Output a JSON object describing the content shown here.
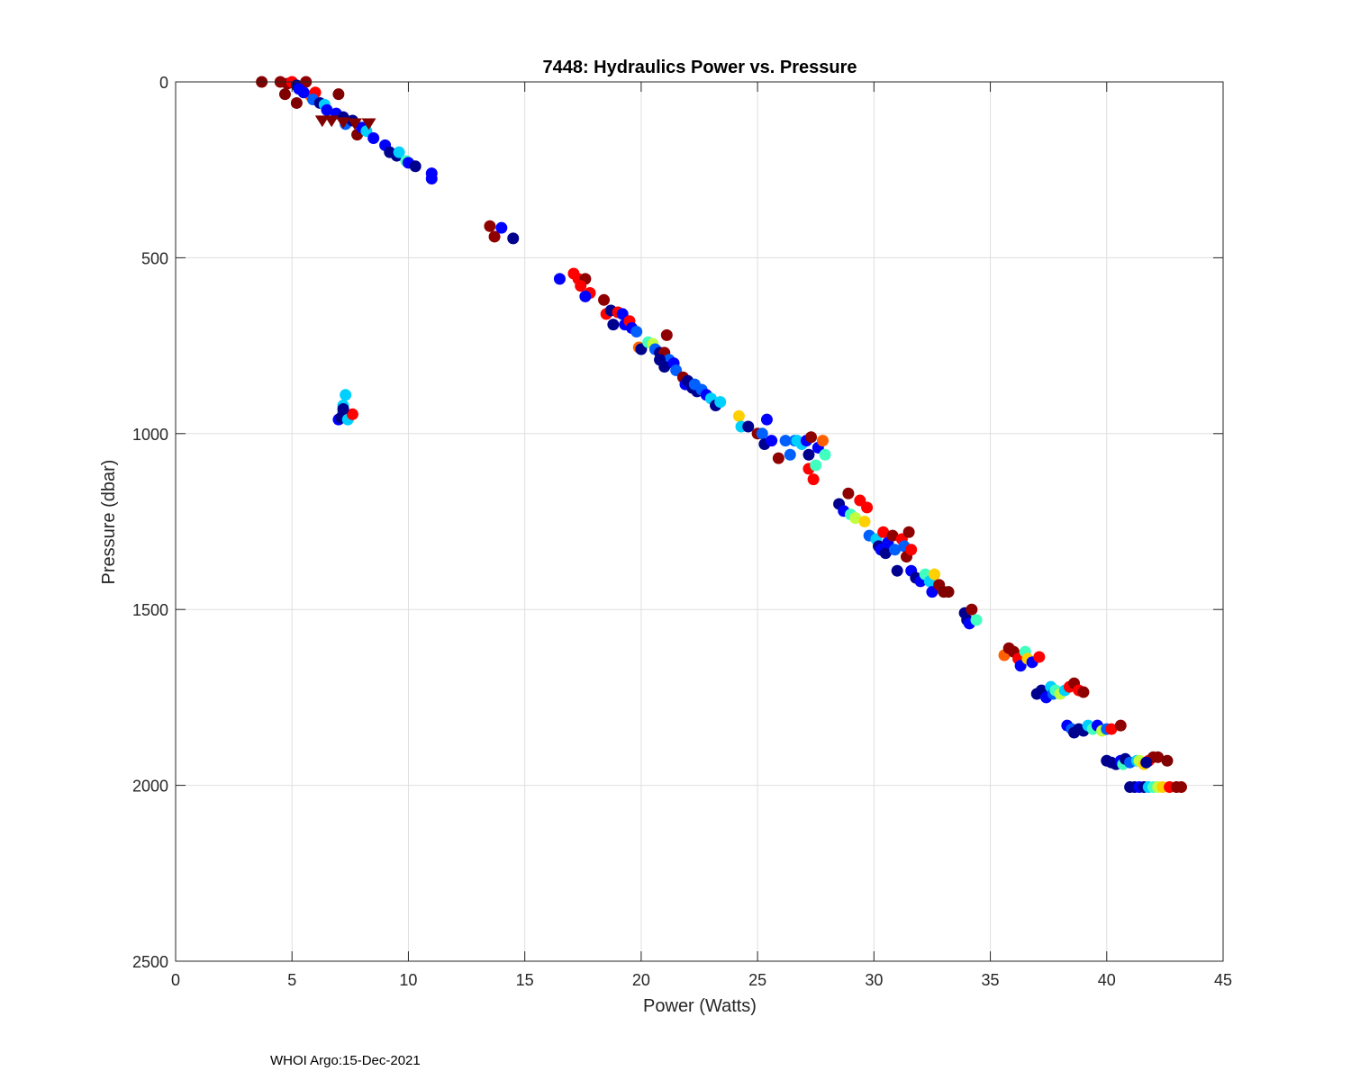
{
  "chart_data": {
    "type": "scatter",
    "title": "7448: Hydraulics Power vs. Pressure",
    "xlabel": "Power (Watts)",
    "ylabel": "Pressure (dbar)",
    "xlim": [
      0,
      45
    ],
    "ylim": [
      0,
      2500
    ],
    "y_reversed": true,
    "grid": true,
    "x_ticks": [
      0,
      5,
      10,
      15,
      20,
      25,
      30,
      35,
      40,
      45
    ],
    "y_ticks": [
      0,
      500,
      1000,
      1500,
      2000,
      2500
    ],
    "x_tick_labels": [
      "0",
      "5",
      "10",
      "15",
      "20",
      "25",
      "30",
      "35",
      "40",
      "45"
    ],
    "y_tick_labels": [
      "0",
      "500",
      "1000",
      "1500",
      "2000",
      "2500"
    ],
    "colormap": "jet (profile number)",
    "palette": [
      "#00008f",
      "#0000ff",
      "#0060ff",
      "#00d0ff",
      "#40ffbf",
      "#bfff40",
      "#ffd000",
      "#ff6000",
      "#ff0000",
      "#8f0000",
      "#800000"
    ],
    "series": [
      {
        "name": "pump-events-circle",
        "marker": "circle",
        "points": [
          [
            3.7,
            0,
            10
          ],
          [
            4.5,
            0,
            9
          ],
          [
            4.8,
            5,
            9
          ],
          [
            5.0,
            0,
            8
          ],
          [
            5.2,
            10,
            0
          ],
          [
            5.6,
            0,
            9
          ],
          [
            5.3,
            20,
            1
          ],
          [
            4.7,
            35,
            10
          ],
          [
            5.2,
            60,
            10
          ],
          [
            5.8,
            40,
            7
          ],
          [
            6.0,
            30,
            8
          ],
          [
            5.5,
            30,
            1
          ],
          [
            5.9,
            50,
            2
          ],
          [
            6.2,
            60,
            0
          ],
          [
            6.4,
            65,
            3
          ],
          [
            6.5,
            80,
            1
          ],
          [
            6.9,
            90,
            1
          ],
          [
            7.0,
            35,
            10
          ],
          [
            7.2,
            100,
            0
          ],
          [
            7.3,
            120,
            2
          ],
          [
            7.6,
            110,
            0
          ],
          [
            7.8,
            150,
            10
          ],
          [
            8.0,
            130,
            1
          ],
          [
            8.2,
            140,
            3
          ],
          [
            8.5,
            160,
            1
          ],
          [
            9.0,
            180,
            1
          ],
          [
            9.2,
            200,
            0
          ],
          [
            9.5,
            210,
            0
          ],
          [
            9.6,
            200,
            3
          ],
          [
            9.9,
            225,
            4
          ],
          [
            10.0,
            230,
            1
          ],
          [
            10.3,
            240,
            0
          ],
          [
            11.0,
            260,
            1
          ],
          [
            11.0,
            275,
            1
          ],
          [
            13.5,
            410,
            9
          ],
          [
            13.7,
            440,
            9
          ],
          [
            14.0,
            415,
            1
          ],
          [
            14.5,
            445,
            0
          ],
          [
            7.0,
            960,
            1
          ],
          [
            7.2,
            940,
            2
          ],
          [
            7.2,
            920,
            3
          ],
          [
            7.3,
            890,
            3
          ],
          [
            7.1,
            955,
            0
          ],
          [
            7.4,
            960,
            3
          ],
          [
            7.6,
            945,
            8
          ],
          [
            7.2,
            930,
            0
          ],
          [
            16.5,
            560,
            1
          ],
          [
            17.1,
            545,
            8
          ],
          [
            17.3,
            560,
            8
          ],
          [
            17.6,
            560,
            9
          ],
          [
            17.4,
            580,
            8
          ],
          [
            17.8,
            600,
            8
          ],
          [
            17.6,
            610,
            1
          ],
          [
            18.4,
            620,
            9
          ],
          [
            18.5,
            660,
            8
          ],
          [
            18.7,
            650,
            0
          ],
          [
            19.0,
            655,
            8
          ],
          [
            19.2,
            660,
            1
          ],
          [
            19.3,
            690,
            1
          ],
          [
            18.8,
            690,
            0
          ],
          [
            19.5,
            680,
            8
          ],
          [
            19.6,
            700,
            1
          ],
          [
            19.8,
            710,
            2
          ],
          [
            19.9,
            755,
            7
          ],
          [
            20.0,
            760,
            0
          ],
          [
            20.3,
            740,
            4
          ],
          [
            20.5,
            745,
            5
          ],
          [
            20.6,
            760,
            2
          ],
          [
            20.8,
            770,
            0
          ],
          [
            21.0,
            770,
            9
          ],
          [
            21.1,
            720,
            9
          ],
          [
            21.2,
            790,
            2
          ],
          [
            20.8,
            790,
            0
          ],
          [
            21.0,
            810,
            0
          ],
          [
            21.4,
            800,
            1
          ],
          [
            21.5,
            820,
            2
          ],
          [
            21.8,
            840,
            9
          ],
          [
            21.9,
            860,
            1
          ],
          [
            22.0,
            850,
            0
          ],
          [
            22.2,
            870,
            0
          ],
          [
            22.4,
            880,
            0
          ],
          [
            22.3,
            860,
            2
          ],
          [
            22.6,
            875,
            2
          ],
          [
            22.8,
            890,
            1
          ],
          [
            23.0,
            900,
            3
          ],
          [
            23.2,
            920,
            0
          ],
          [
            23.4,
            910,
            3
          ],
          [
            24.2,
            950,
            6
          ],
          [
            24.3,
            980,
            3
          ],
          [
            24.6,
            980,
            0
          ],
          [
            25.0,
            1000,
            9
          ],
          [
            25.2,
            1000,
            2
          ],
          [
            25.3,
            1030,
            0
          ],
          [
            25.4,
            960,
            1
          ],
          [
            25.6,
            1020,
            1
          ],
          [
            25.9,
            1070,
            9
          ],
          [
            26.2,
            1020,
            2
          ],
          [
            26.4,
            1060,
            2
          ],
          [
            26.6,
            1020,
            2
          ],
          [
            26.7,
            1020,
            3
          ],
          [
            26.9,
            1030,
            3
          ],
          [
            27.1,
            1020,
            1
          ],
          [
            27.2,
            1100,
            8
          ],
          [
            27.2,
            1060,
            0
          ],
          [
            27.3,
            1010,
            9
          ],
          [
            27.4,
            1130,
            8
          ],
          [
            27.5,
            1090,
            4
          ],
          [
            27.6,
            1040,
            1
          ],
          [
            27.8,
            1020,
            7
          ],
          [
            27.9,
            1060,
            4
          ],
          [
            28.5,
            1200,
            0
          ],
          [
            28.7,
            1220,
            1
          ],
          [
            28.9,
            1170,
            9
          ],
          [
            29.0,
            1230,
            4
          ],
          [
            29.2,
            1240,
            5
          ],
          [
            29.4,
            1190,
            8
          ],
          [
            29.6,
            1250,
            6
          ],
          [
            29.7,
            1210,
            8
          ],
          [
            29.8,
            1290,
            2
          ],
          [
            30.1,
            1300,
            3
          ],
          [
            30.2,
            1320,
            0
          ],
          [
            30.3,
            1330,
            1
          ],
          [
            30.4,
            1280,
            8
          ],
          [
            30.5,
            1340,
            0
          ],
          [
            30.6,
            1310,
            1
          ],
          [
            30.8,
            1290,
            9
          ],
          [
            30.9,
            1330,
            2
          ],
          [
            31.0,
            1390,
            0
          ],
          [
            31.2,
            1300,
            8
          ],
          [
            31.3,
            1320,
            2
          ],
          [
            31.4,
            1350,
            9
          ],
          [
            31.5,
            1280,
            9
          ],
          [
            31.6,
            1330,
            8
          ],
          [
            31.6,
            1390,
            1
          ],
          [
            31.8,
            1410,
            0
          ],
          [
            32.0,
            1420,
            1
          ],
          [
            32.2,
            1400,
            4
          ],
          [
            32.4,
            1420,
            3
          ],
          [
            32.5,
            1450,
            1
          ],
          [
            32.6,
            1400,
            6
          ],
          [
            32.8,
            1430,
            9
          ],
          [
            33.0,
            1450,
            10
          ],
          [
            33.2,
            1450,
            10
          ],
          [
            33.9,
            1510,
            0
          ],
          [
            34.0,
            1530,
            0
          ],
          [
            34.1,
            1540,
            1
          ],
          [
            34.2,
            1500,
            9
          ],
          [
            34.4,
            1530,
            4
          ],
          [
            35.6,
            1630,
            7
          ],
          [
            35.8,
            1610,
            9
          ],
          [
            36.0,
            1620,
            9
          ],
          [
            36.2,
            1640,
            8
          ],
          [
            36.3,
            1660,
            1
          ],
          [
            36.5,
            1620,
            4
          ],
          [
            36.6,
            1640,
            6
          ],
          [
            36.8,
            1650,
            1
          ],
          [
            37.0,
            1740,
            0
          ],
          [
            37.2,
            1730,
            0
          ],
          [
            37.4,
            1750,
            1
          ],
          [
            37.6,
            1720,
            3
          ],
          [
            37.7,
            1740,
            2
          ],
          [
            37.8,
            1730,
            4
          ],
          [
            38.0,
            1740,
            5
          ],
          [
            38.2,
            1730,
            3
          ],
          [
            38.4,
            1720,
            8
          ],
          [
            38.6,
            1710,
            9
          ],
          [
            38.8,
            1730,
            8
          ],
          [
            39.0,
            1735,
            9
          ],
          [
            37.1,
            1635,
            8
          ],
          [
            38.3,
            1830,
            1
          ],
          [
            38.5,
            1840,
            2
          ],
          [
            38.6,
            1850,
            0
          ],
          [
            38.8,
            1840,
            0
          ],
          [
            39.0,
            1845,
            0
          ],
          [
            39.2,
            1830,
            3
          ],
          [
            39.4,
            1840,
            4
          ],
          [
            39.6,
            1830,
            1
          ],
          [
            39.8,
            1845,
            5
          ],
          [
            40.0,
            1840,
            2
          ],
          [
            40.2,
            1840,
            8
          ],
          [
            40.6,
            1830,
            9
          ],
          [
            40.0,
            1930,
            0
          ],
          [
            40.2,
            1935,
            0
          ],
          [
            40.4,
            1940,
            0
          ],
          [
            40.6,
            1930,
            1
          ],
          [
            40.7,
            1940,
            4
          ],
          [
            40.8,
            1925,
            0
          ],
          [
            41.0,
            1935,
            2
          ],
          [
            41.3,
            1930,
            3
          ],
          [
            41.4,
            1930,
            5
          ],
          [
            41.6,
            1940,
            6
          ],
          [
            41.8,
            1930,
            8
          ],
          [
            42.0,
            1920,
            9
          ],
          [
            42.2,
            1920,
            9
          ],
          [
            42.6,
            1930,
            10
          ],
          [
            41.7,
            1935,
            0
          ],
          [
            41.0,
            2005,
            0
          ],
          [
            41.2,
            2005,
            0
          ],
          [
            41.4,
            2005,
            1
          ],
          [
            41.6,
            2005,
            0
          ],
          [
            41.8,
            2005,
            3
          ],
          [
            42.0,
            2005,
            4
          ],
          [
            42.2,
            2005,
            5
          ],
          [
            42.4,
            2005,
            6
          ],
          [
            42.7,
            2005,
            8
          ],
          [
            43.0,
            2005,
            9
          ],
          [
            43.2,
            2005,
            9
          ]
        ]
      },
      {
        "name": "pump-events-triangle",
        "marker": "triangle-down",
        "points": [
          [
            6.3,
            110,
            10
          ],
          [
            6.7,
            110,
            10
          ],
          [
            7.2,
            115,
            10
          ],
          [
            7.7,
            118,
            10
          ],
          [
            8.3,
            118,
            10
          ]
        ]
      }
    ]
  },
  "footer": {
    "text": "WHOI Argo:15-Dec-2021"
  }
}
